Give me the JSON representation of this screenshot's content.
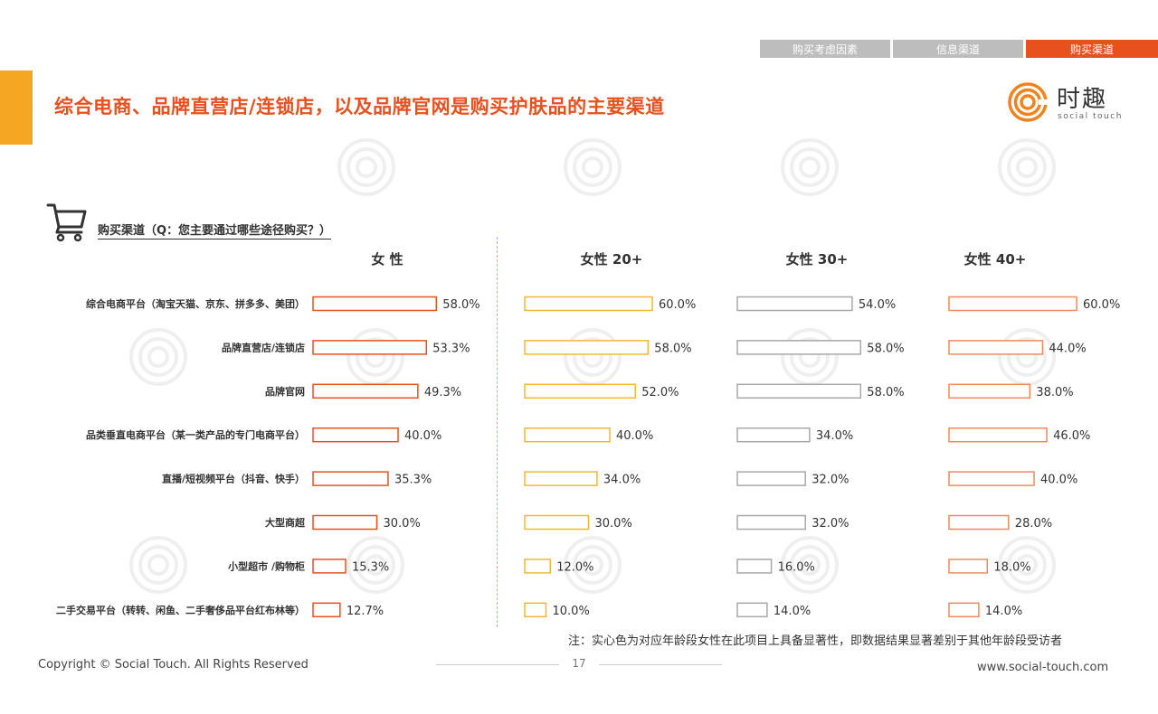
{
  "header": {
    "tabs": [
      {
        "label": "购买考虑因素",
        "active": false
      },
      {
        "label": "信息渠道",
        "active": false
      },
      {
        "label": "购买渠道",
        "active": true
      }
    ],
    "title": "综合电商、品牌直营店/连锁店，以及品牌官网是购买护肤品的主要渠道",
    "logo": {
      "text": "时趣",
      "sub": "social touch"
    }
  },
  "section": {
    "title": "购买渠道（Q：您主要通过哪些途径购买？）"
  },
  "chart_data": {
    "type": "bar",
    "orientation": "horizontal",
    "categories": [
      "综合电商平台（淘宝天猫、京东、拼多多、美团）",
      "品牌直营店/连锁店",
      "品牌官网",
      "品类垂直电商平台（某一类产品的专门电商平台）",
      "直播/短视频平台（抖音、快手）",
      "大型商超",
      "小型超市 /购物柜",
      "二手交易平台（转转、闲鱼、二手奢侈品平台红布林等）"
    ],
    "series": [
      {
        "name": "女 性",
        "color": "#E8501E",
        "values": [
          58.0,
          53.3,
          49.3,
          40.0,
          35.3,
          30.0,
          15.3,
          12.7
        ]
      },
      {
        "name": "女性 20+",
        "color": "#F5B731",
        "values": [
          60.0,
          58.0,
          52.0,
          40.0,
          34.0,
          30.0,
          12.0,
          10.0
        ]
      },
      {
        "name": "女性 30+",
        "color": "#A8A8A8",
        "values": [
          54.0,
          58.0,
          58.0,
          34.0,
          32.0,
          32.0,
          16.0,
          14.0
        ]
      },
      {
        "name": "女性 40+",
        "color": "#F08A5D",
        "values": [
          60.0,
          44.0,
          38.0,
          46.0,
          40.0,
          28.0,
          18.0,
          14.0
        ]
      }
    ],
    "value_format": "0.0%",
    "xlim": [
      0,
      100
    ]
  },
  "note": "注：实心色为对应年龄段女性在此项目上具备显著性，即数据结果显著差别于其他年龄段受访者",
  "footer": {
    "copyright": "Copyright © Social Touch. All Rights Reserved",
    "page": "17",
    "website": "www.social-touch.com"
  }
}
